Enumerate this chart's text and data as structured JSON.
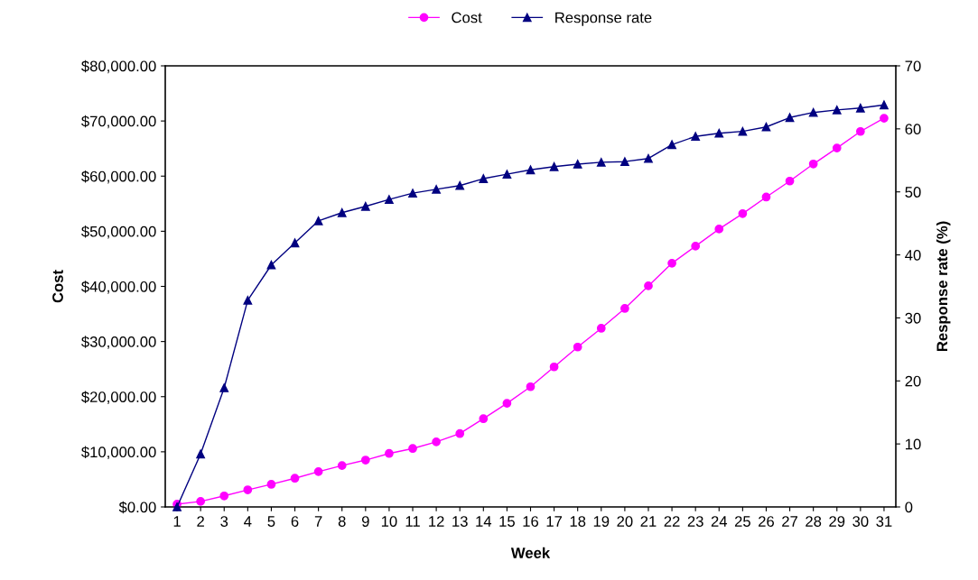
{
  "chart_data": {
    "type": "line",
    "xlabel": "Week",
    "ylabel": "Cost",
    "y2label": "Response rate (%)",
    "categories": [
      "1",
      "2",
      "3",
      "4",
      "5",
      "6",
      "7",
      "8",
      "9",
      "10",
      "11",
      "12",
      "13",
      "14",
      "15",
      "16",
      "17",
      "18",
      "19",
      "20",
      "21",
      "22",
      "23",
      "24",
      "25",
      "26",
      "27",
      "28",
      "29",
      "30",
      "31"
    ],
    "series": [
      {
        "name": "Cost",
        "color": "#ff00ff",
        "marker": "circle",
        "values": [
          500,
          1000,
          2000,
          3100,
          4100,
          5200,
          6400,
          7500,
          8500,
          9700,
          10600,
          11800,
          13300,
          16000,
          18800,
          21800,
          25400,
          29000,
          32400,
          36000,
          40100,
          44200,
          47300,
          50400,
          53200,
          56200,
          59100,
          62200,
          65100,
          68100,
          70500
        ]
      },
      {
        "name": "Response rate",
        "color": "#000080",
        "marker": "triangle",
        "axis": "y2",
        "values": [
          0,
          8.4,
          18.9,
          32.8,
          38.4,
          41.9,
          45.4,
          46.7,
          47.7,
          48.8,
          49.8,
          50.4,
          51.0,
          52.1,
          52.8,
          53.5,
          54.0,
          54.4,
          54.7,
          54.8,
          55.3,
          57.5,
          58.8,
          59.3,
          59.6,
          60.3,
          61.8,
          62.6,
          63.0,
          63.3,
          63.8
        ]
      }
    ],
    "ylim": [
      0,
      80000
    ],
    "yticks": [
      {
        "value": 0,
        "label": "$0.00"
      },
      {
        "value": 10000,
        "label": "$10,000.00"
      },
      {
        "value": 20000,
        "label": "$20,000.00"
      },
      {
        "value": 30000,
        "label": "$30,000.00"
      },
      {
        "value": 40000,
        "label": "$40,000.00"
      },
      {
        "value": 50000,
        "label": "$50,000.00"
      },
      {
        "value": 60000,
        "label": "$60,000.00"
      },
      {
        "value": 70000,
        "label": "$70,000.00"
      },
      {
        "value": 80000,
        "label": "$80,000.00"
      }
    ],
    "y2lim": [
      0,
      70
    ],
    "y2ticks": [
      0,
      10,
      20,
      30,
      40,
      50,
      60,
      70
    ],
    "grid": false,
    "legend": "top",
    "line_style": "solid"
  }
}
